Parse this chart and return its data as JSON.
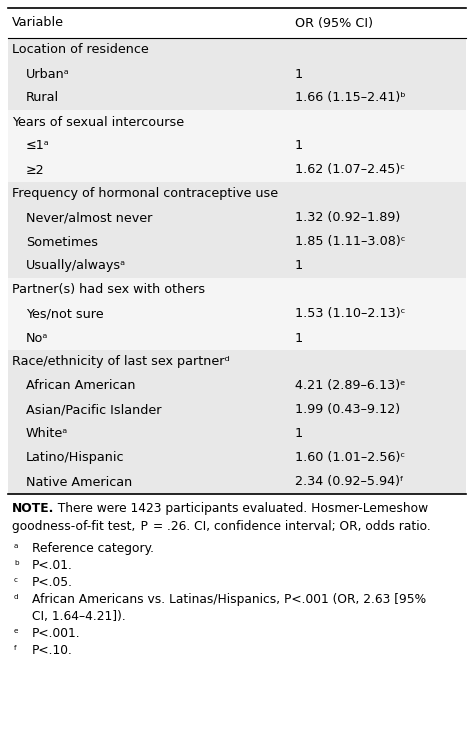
{
  "title_col1": "Variable",
  "title_col2": "OR (95% CI)",
  "rows": [
    {
      "indent": 0,
      "col1": "Location of residence",
      "col2": "",
      "bg": "#e8e8e8"
    },
    {
      "indent": 1,
      "col1": "Urbanᵃ",
      "col2": "1",
      "bg": "#e8e8e8"
    },
    {
      "indent": 1,
      "col1": "Rural",
      "col2": "1.66 (1.15–2.41)ᵇ",
      "bg": "#e8e8e8"
    },
    {
      "indent": 0,
      "col1": "Years of sexual intercourse",
      "col2": "",
      "bg": "#f5f5f5"
    },
    {
      "indent": 1,
      "col1": "≤1ᵃ",
      "col2": "1",
      "bg": "#f5f5f5"
    },
    {
      "indent": 1,
      "col1": "≥2",
      "col2": "1.62 (1.07–2.45)ᶜ",
      "bg": "#f5f5f5"
    },
    {
      "indent": 0,
      "col1": "Frequency of hormonal contraceptive use",
      "col2": "",
      "bg": "#e8e8e8"
    },
    {
      "indent": 1,
      "col1": "Never/almost never",
      "col2": "1.32 (0.92–1.89)",
      "bg": "#e8e8e8"
    },
    {
      "indent": 1,
      "col1": "Sometimes",
      "col2": "1.85 (1.11–3.08)ᶜ",
      "bg": "#e8e8e8"
    },
    {
      "indent": 1,
      "col1": "Usually/alwaysᵃ",
      "col2": "1",
      "bg": "#e8e8e8"
    },
    {
      "indent": 0,
      "col1": "Partner(s) had sex with others",
      "col2": "",
      "bg": "#f5f5f5"
    },
    {
      "indent": 1,
      "col1": "Yes/not sure",
      "col2": "1.53 (1.10–2.13)ᶜ",
      "bg": "#f5f5f5"
    },
    {
      "indent": 1,
      "col1": "Noᵃ",
      "col2": "1",
      "bg": "#f5f5f5"
    },
    {
      "indent": 0,
      "col1": "Race/ethnicity of last sex partnerᵈ",
      "col2": "",
      "bg": "#e8e8e8"
    },
    {
      "indent": 1,
      "col1": "African American",
      "col2": "4.21 (2.89–6.13)ᵉ",
      "bg": "#e8e8e8"
    },
    {
      "indent": 1,
      "col1": "Asian/Pacific Islander",
      "col2": "1.99 (0.43–9.12)",
      "bg": "#e8e8e8"
    },
    {
      "indent": 1,
      "col1": "Whiteᵃ",
      "col2": "1",
      "bg": "#e8e8e8"
    },
    {
      "indent": 1,
      "col1": "Latino/Hispanic",
      "col2": "1.60 (1.01–2.56)ᶜ",
      "bg": "#e8e8e8"
    },
    {
      "indent": 1,
      "col1": "Native American",
      "col2": "2.34 (0.92–5.94)ᶠ",
      "bg": "#e8e8e8"
    }
  ],
  "note_bold": "NOTE.",
  "note_rest": "  There were 1423 participants evaluated. Hosmer-Lemeshow",
  "note_line2": "goodness-of-fit test,  P  = .26. CI, confidence interval; OR, odds ratio.",
  "footnotes": [
    [
      "ᵃ",
      "Reference category."
    ],
    [
      "ᵇ",
      "P<.01."
    ],
    [
      "ᶜ",
      "P<.05."
    ],
    [
      "ᵈ",
      "African Americans vs. Latinas/Hispanics, P<.001 (OR, 2.63 [95%"
    ],
    [
      "",
      "CI, 1.64–4.21])."
    ],
    [
      "ᵉ",
      "P<.001."
    ],
    [
      "ᶠ",
      "P<.10."
    ]
  ],
  "font_size": 9.2,
  "note_font_size": 8.8,
  "fig_width": 4.74,
  "fig_height": 7.55
}
